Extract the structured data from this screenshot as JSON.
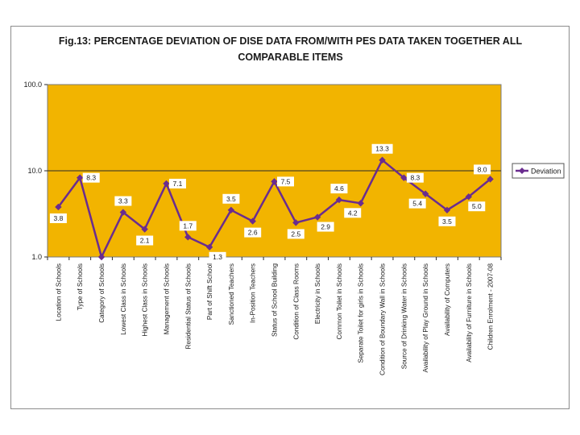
{
  "chart_data": {
    "type": "line",
    "title_lines": [
      "Fig.13: PERCENTAGE DEVIATION OF DISE DATA FROM/WITH PES DATA TAKEN TOGETHER ALL",
      "COMPARABLE ITEMS"
    ],
    "yscale": "log",
    "ylim": [
      1.0,
      100.0
    ],
    "yticks": [
      "1.0",
      "10.0",
      "100.0"
    ],
    "grid": "horizontal major lines only",
    "legend_position": "right",
    "plot_background": "#f2b400",
    "line_color": "#6a2c8f",
    "categories": [
      "Location of Schools",
      "Type of Schools",
      "Category of Schools",
      "Lowest Class in Schools",
      "Highest Class in Schools",
      "Management of Schools",
      "Residential Status of Schools",
      "Part of Shift School",
      "Sanctioned Teachers",
      "In-Position Teachers",
      "Status of School Building",
      "Condition of Class Rooms",
      "Electricity in Schools",
      "Common Toilet in Schools",
      "Separate Toilet for girls in Schools",
      "Condition of Boundary Wall in Schools",
      "Source of Drinking Water in Schools",
      "Availability of Play Ground in Schools",
      "Availability of Computers",
      "Availability of Furniture in Schools",
      "Children Enrolment - 2007-08"
    ],
    "series": [
      {
        "name": "Deviation",
        "values": [
          3.8,
          8.3,
          1.0,
          3.3,
          2.1,
          7.1,
          1.7,
          1.3,
          3.5,
          2.6,
          7.5,
          2.5,
          2.9,
          4.6,
          4.2,
          13.3,
          8.3,
          5.4,
          3.5,
          5.0,
          8.0
        ]
      }
    ],
    "data_labels": [
      {
        "index": 0,
        "text": "3.8",
        "pos": "below"
      },
      {
        "index": 1,
        "text": "8.3",
        "pos": "right"
      },
      {
        "index": 3,
        "text": "3.3",
        "pos": "above"
      },
      {
        "index": 4,
        "text": "2.1",
        "pos": "below"
      },
      {
        "index": 5,
        "text": "7.1",
        "pos": "right"
      },
      {
        "index": 6,
        "text": "1.7",
        "pos": "above"
      },
      {
        "index": 7,
        "text": "1.3",
        "pos": "below-right"
      },
      {
        "index": 8,
        "text": "3.5",
        "pos": "above"
      },
      {
        "index": 9,
        "text": "2.6",
        "pos": "below"
      },
      {
        "index": 10,
        "text": "7.5",
        "pos": "right"
      },
      {
        "index": 11,
        "text": "2.5",
        "pos": "below"
      },
      {
        "index": 12,
        "text": "2.9",
        "pos": "below-right"
      },
      {
        "index": 13,
        "text": "4.6",
        "pos": "above"
      },
      {
        "index": 14,
        "text": "4.2",
        "pos": "below-left"
      },
      {
        "index": 15,
        "text": "13.3",
        "pos": "above"
      },
      {
        "index": 16,
        "text": "8.3",
        "pos": "right"
      },
      {
        "index": 17,
        "text": "5.4",
        "pos": "below-left"
      },
      {
        "index": 18,
        "text": "3.5",
        "pos": "below"
      },
      {
        "index": 19,
        "text": "5.0",
        "pos": "below-right"
      },
      {
        "index": 20,
        "text": "8.0",
        "pos": "above-left"
      }
    ]
  }
}
